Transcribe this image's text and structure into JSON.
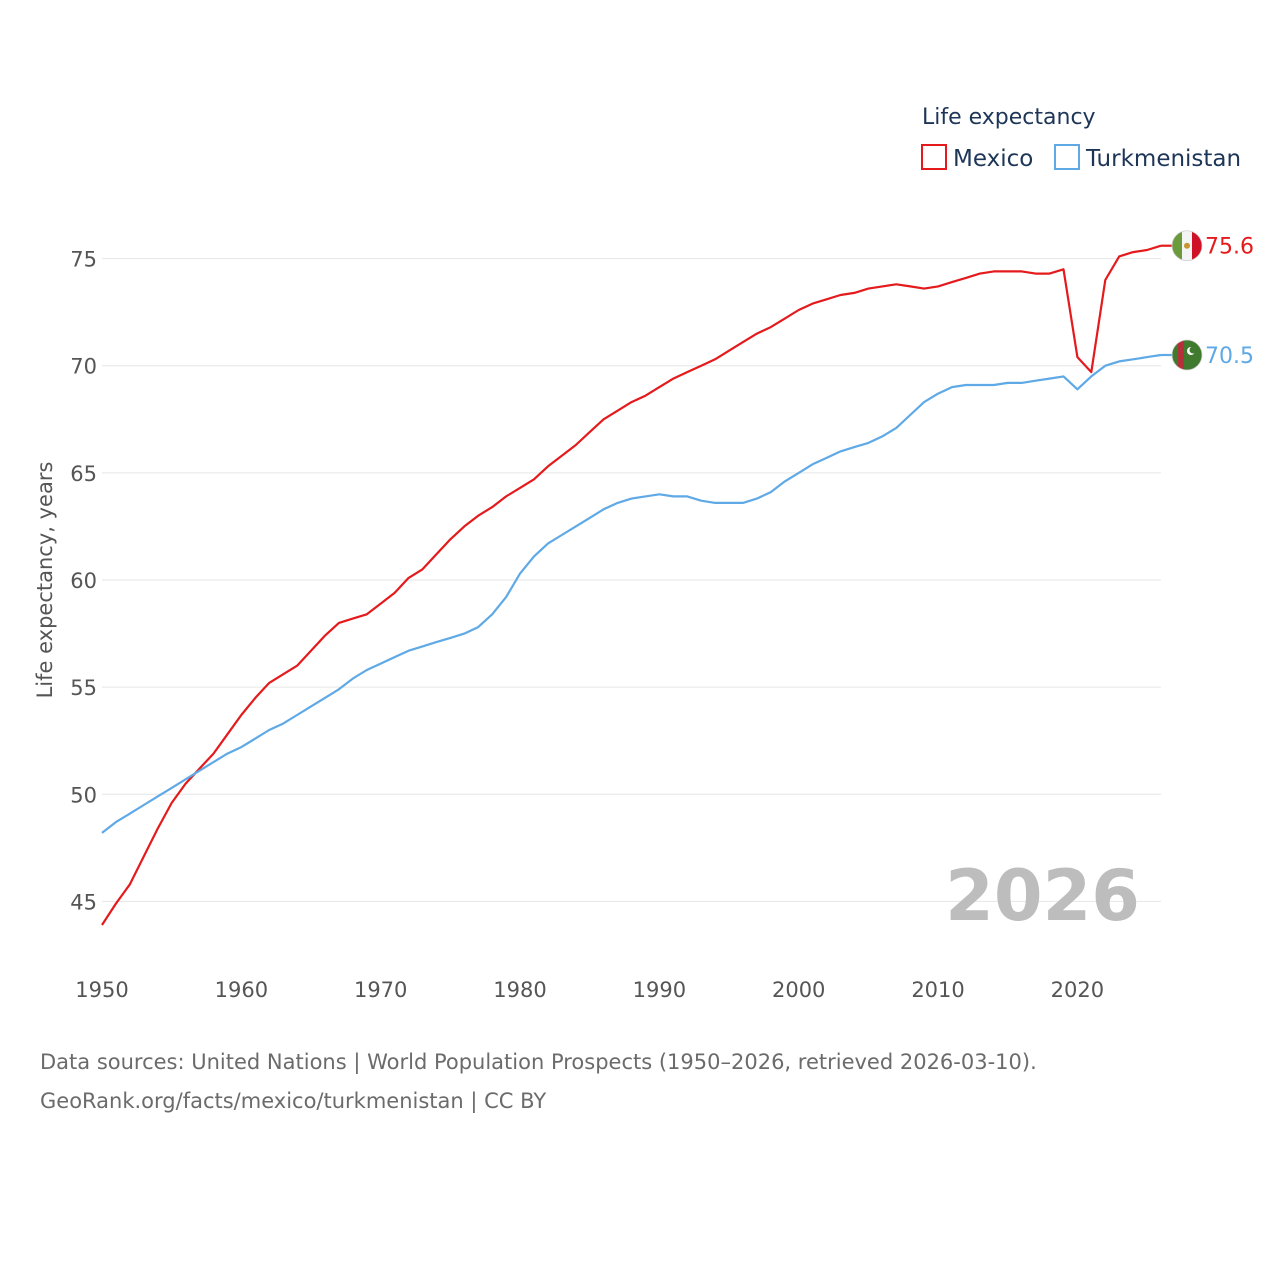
{
  "chart_data": {
    "type": "line",
    "title": "",
    "legend_title": "Life expectancy",
    "ylabel": "Life expectancy, years",
    "xlabel": "",
    "xlim": [
      1950,
      2026
    ],
    "ylim": [
      42.5,
      77.5
    ],
    "x_ticks": [
      1950,
      1960,
      1970,
      1980,
      1990,
      2000,
      2010,
      2020
    ],
    "y_ticks": [
      45,
      50,
      55,
      60,
      65,
      70,
      75
    ],
    "grid": true,
    "legend_position": "top-right",
    "watermark_year": "2026",
    "series": [
      {
        "name": "Mexico",
        "color": "#e41a1c",
        "end_label": "75.6",
        "flag_icon": "mexico-flag-icon",
        "x": [
          1950,
          1951,
          1952,
          1953,
          1954,
          1955,
          1956,
          1957,
          1958,
          1959,
          1960,
          1961,
          1962,
          1963,
          1964,
          1965,
          1966,
          1967,
          1968,
          1969,
          1970,
          1971,
          1972,
          1973,
          1974,
          1975,
          1976,
          1977,
          1978,
          1979,
          1980,
          1981,
          1982,
          1983,
          1984,
          1985,
          1986,
          1987,
          1988,
          1989,
          1990,
          1991,
          1992,
          1993,
          1994,
          1995,
          1996,
          1997,
          1998,
          1999,
          2000,
          2001,
          2002,
          2003,
          2004,
          2005,
          2006,
          2007,
          2008,
          2009,
          2010,
          2011,
          2012,
          2013,
          2014,
          2015,
          2016,
          2017,
          2018,
          2019,
          2020,
          2021,
          2022,
          2023,
          2024,
          2025,
          2026
        ],
        "values": [
          43.9,
          44.9,
          45.8,
          47.1,
          48.4,
          49.6,
          50.5,
          51.2,
          51.9,
          52.8,
          53.7,
          54.5,
          55.2,
          55.6,
          56.0,
          56.7,
          57.4,
          58.0,
          58.2,
          58.4,
          58.9,
          59.4,
          60.1,
          60.5,
          61.2,
          61.9,
          62.5,
          63.0,
          63.4,
          63.9,
          64.3,
          64.7,
          65.3,
          65.8,
          66.3,
          66.9,
          67.5,
          67.9,
          68.3,
          68.6,
          69.0,
          69.4,
          69.7,
          70.0,
          70.3,
          70.7,
          71.1,
          71.5,
          71.8,
          72.2,
          72.6,
          72.9,
          73.1,
          73.3,
          73.4,
          73.6,
          73.7,
          73.8,
          73.7,
          73.6,
          73.7,
          73.9,
          74.1,
          74.3,
          74.4,
          74.4,
          74.4,
          74.3,
          74.3,
          74.5,
          70.4,
          69.7,
          74.0,
          75.1,
          75.3,
          75.4,
          75.6
        ]
      },
      {
        "name": "Turkmenistan",
        "color": "#5ea9e6",
        "end_label": "70.5",
        "flag_icon": "turkmenistan-flag-icon",
        "x": [
          1950,
          1951,
          1952,
          1953,
          1954,
          1955,
          1956,
          1957,
          1958,
          1959,
          1960,
          1961,
          1962,
          1963,
          1964,
          1965,
          1966,
          1967,
          1968,
          1969,
          1970,
          1971,
          1972,
          1973,
          1974,
          1975,
          1976,
          1977,
          1978,
          1979,
          1980,
          1981,
          1982,
          1983,
          1984,
          1985,
          1986,
          1987,
          1988,
          1989,
          1990,
          1991,
          1992,
          1993,
          1994,
          1995,
          1996,
          1997,
          1998,
          1999,
          2000,
          2001,
          2002,
          2003,
          2004,
          2005,
          2006,
          2007,
          2008,
          2009,
          2010,
          2011,
          2012,
          2013,
          2014,
          2015,
          2016,
          2017,
          2018,
          2019,
          2020,
          2021,
          2022,
          2023,
          2024,
          2025,
          2026
        ],
        "values": [
          48.2,
          48.7,
          49.1,
          49.5,
          49.9,
          50.3,
          50.7,
          51.1,
          51.5,
          51.9,
          52.2,
          52.6,
          53.0,
          53.3,
          53.7,
          54.1,
          54.5,
          54.9,
          55.4,
          55.8,
          56.1,
          56.4,
          56.7,
          56.9,
          57.1,
          57.3,
          57.5,
          57.8,
          58.4,
          59.2,
          60.3,
          61.1,
          61.7,
          62.1,
          62.5,
          62.9,
          63.3,
          63.6,
          63.8,
          63.9,
          64.0,
          63.9,
          63.9,
          63.7,
          63.6,
          63.6,
          63.6,
          63.8,
          64.1,
          64.6,
          65.0,
          65.4,
          65.7,
          66.0,
          66.2,
          66.4,
          66.7,
          67.1,
          67.7,
          68.3,
          68.7,
          69.0,
          69.1,
          69.1,
          69.1,
          69.2,
          69.2,
          69.3,
          69.4,
          69.5,
          68.9,
          69.5,
          70.0,
          70.2,
          70.3,
          70.4,
          70.5
        ]
      }
    ]
  },
  "source": {
    "line1": "Data sources: United Nations | World Population Prospects (1950–2026, retrieved 2026-03-10).",
    "line2": "GeoRank.org/facts/mexico/turkmenistan | CC BY"
  }
}
